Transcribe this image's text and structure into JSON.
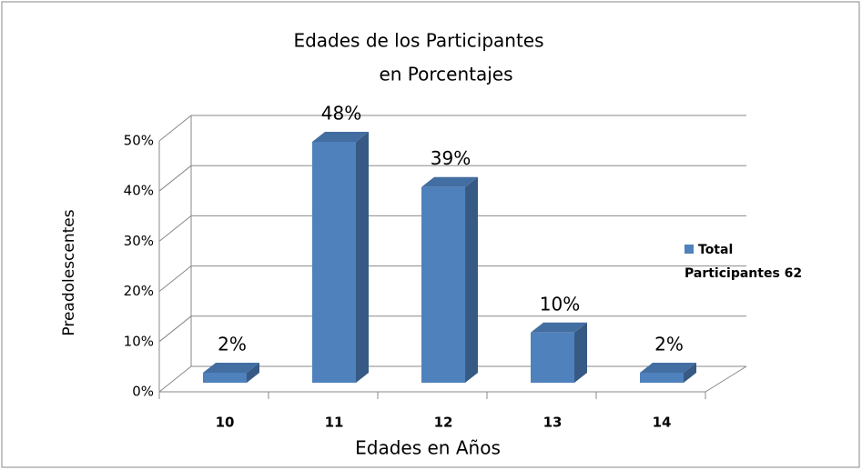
{
  "chart_data": {
    "type": "bar3d",
    "title": [
      "Edades de  los Participantes",
      "en Porcentajes"
    ],
    "x_label": "Edades en Años",
    "y_label": "Preadolescentes",
    "categories": [
      "10",
      "11",
      "12",
      "13",
      "14"
    ],
    "series": [
      {
        "name": "Total Participantes 62",
        "color": "#4f81bd",
        "values": [
          2,
          48,
          39,
          10,
          2
        ],
        "value_labels": [
          "2%",
          "48%",
          "39%",
          "10%",
          "2%"
        ]
      }
    ],
    "ylim": [
      0,
      50
    ],
    "yticks": [
      {
        "value": 0,
        "label": "0%"
      },
      {
        "value": 10,
        "label": "10%"
      },
      {
        "value": 20,
        "label": "20%"
      },
      {
        "value": 30,
        "label": "30%"
      },
      {
        "value": 40,
        "label": "40%"
      },
      {
        "value": 50,
        "label": "50%"
      }
    ],
    "grid": true,
    "legend": "right"
  }
}
